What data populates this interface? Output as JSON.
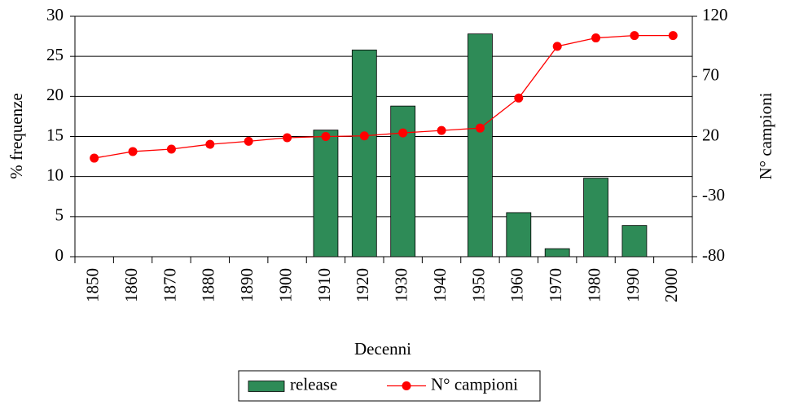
{
  "chart_data": {
    "type": "bar-line",
    "x_label": "Decenni",
    "y_label": "% frequenze",
    "y2_label": "N° campioni",
    "categories": [
      "1850",
      "1860",
      "1870",
      "1880",
      "1890",
      "1900",
      "1910",
      "1920",
      "1930",
      "1940",
      "1950",
      "1960",
      "1970",
      "1980",
      "1990",
      "2000"
    ],
    "series": [
      {
        "name": "release",
        "type": "bar",
        "color": "#2e8b57",
        "values": [
          null,
          null,
          null,
          null,
          null,
          null,
          15.8,
          25.8,
          18.8,
          null,
          27.8,
          5.5,
          1.0,
          9.8,
          3.9,
          null
        ]
      },
      {
        "name": "N° campioni",
        "type": "line",
        "axis": "y2",
        "color": "#ff0000",
        "values": [
          2,
          7.5,
          9.5,
          13.5,
          16,
          19,
          20,
          20.5,
          23,
          25,
          27,
          52,
          95,
          102,
          104,
          104
        ]
      }
    ],
    "ylim": [
      0,
      30
    ],
    "yticks": [
      0,
      5,
      10,
      15,
      20,
      25,
      30
    ],
    "y2lim": [
      -80,
      120
    ],
    "y2ticks": [
      -80,
      -30,
      20,
      70,
      120
    ],
    "grid": true,
    "legend": "bottom"
  }
}
